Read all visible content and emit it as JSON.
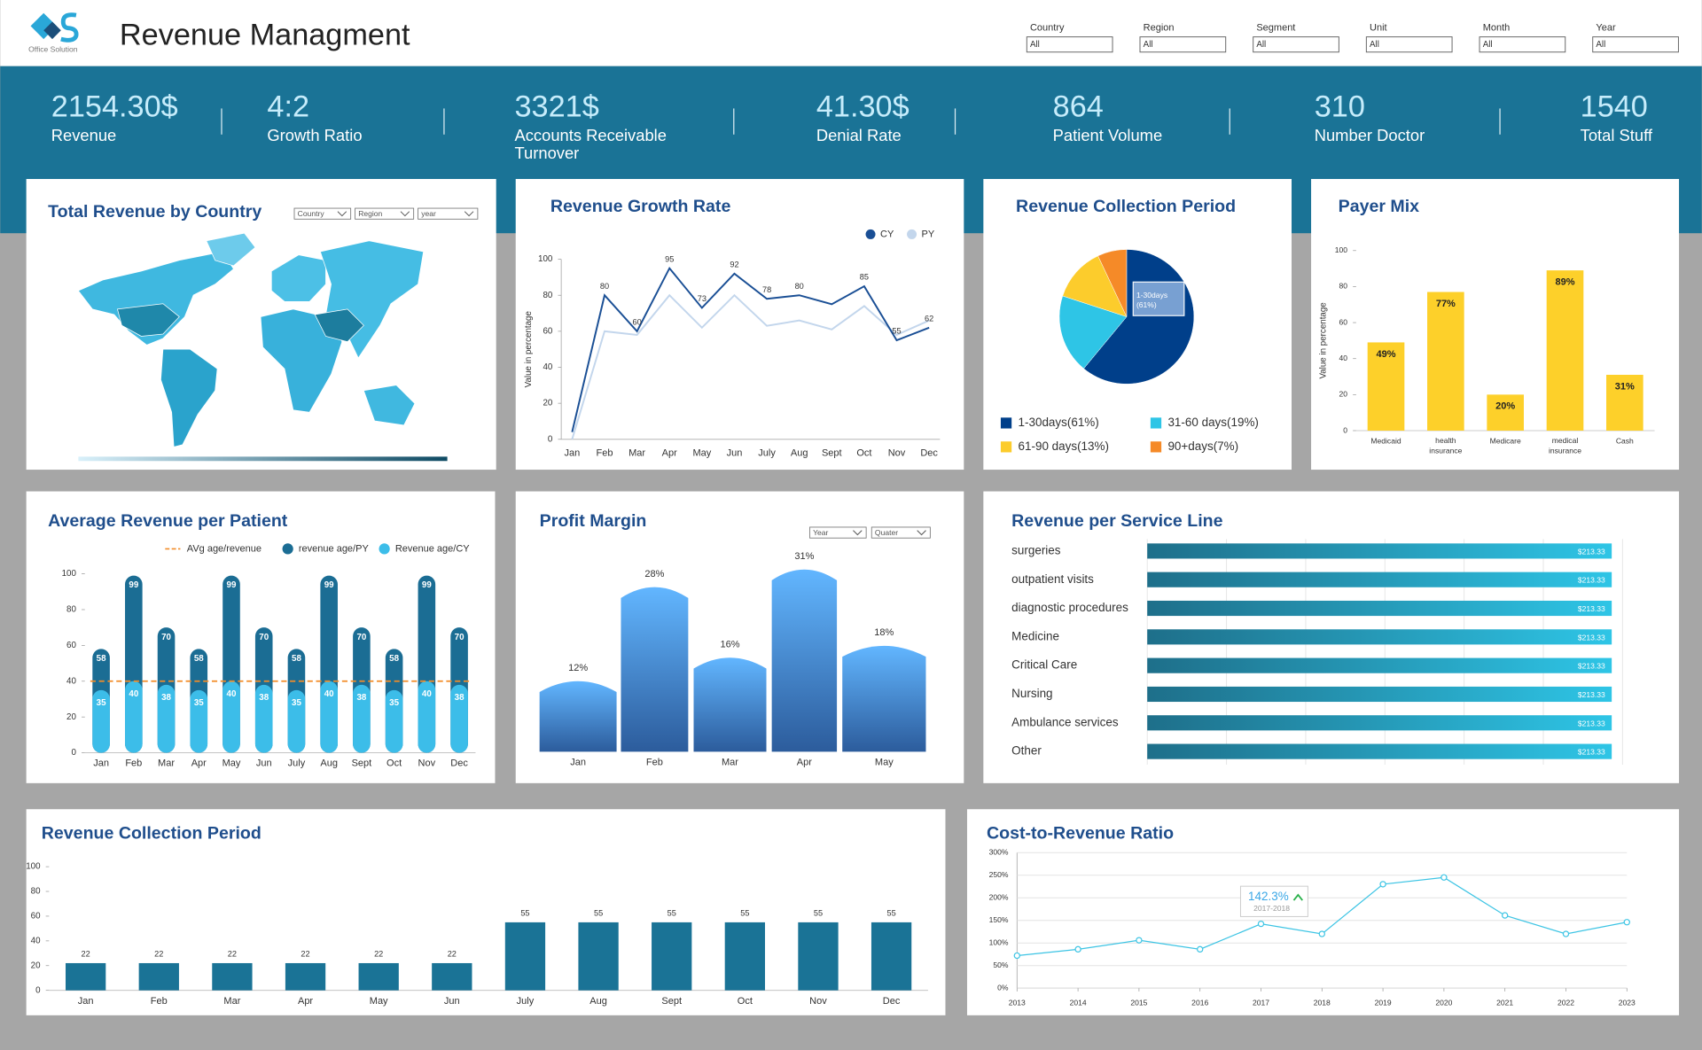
{
  "header": {
    "logo_text": "Office Solution",
    "title": "Revenue Managment"
  },
  "filters": [
    {
      "label": "Country",
      "value": "All"
    },
    {
      "label": "Region",
      "value": "All"
    },
    {
      "label": "Segment",
      "value": "All"
    },
    {
      "label": "Unit",
      "value": "All"
    },
    {
      "label": "Month",
      "value": "All"
    },
    {
      "label": "Year",
      "value": "All"
    }
  ],
  "kpis": [
    {
      "value": "2154.30$",
      "label": "Revenue"
    },
    {
      "value": "4:2",
      "label": "Growth Ratio"
    },
    {
      "value": "3321$",
      "label": "Accounts Receivable Turnover"
    },
    {
      "value": "41.30$",
      "label": "Denial Rate"
    },
    {
      "value": "864",
      "label": "Patient Volume"
    },
    {
      "value": "310",
      "label": "Number Doctor"
    },
    {
      "value": "1540",
      "label": "Total Stuff"
    }
  ],
  "chart_data": [
    {
      "type": "map",
      "title": "Total Revenue by Country",
      "filters": [
        "Country",
        "Region",
        "year"
      ]
    },
    {
      "type": "line",
      "title": "Revenue Growth Rate",
      "categories": [
        "Jan",
        "Feb",
        "Mar",
        "Apr",
        "May",
        "Jun",
        "July",
        "Aug",
        "Sept",
        "Oct",
        "Nov",
        "Dec"
      ],
      "series": [
        {
          "name": "CY",
          "color": "#1a4f95",
          "values": [
            4,
            80,
            60,
            95,
            73,
            92,
            78,
            80,
            75,
            85,
            55,
            62
          ],
          "value_labels": [
            null,
            "80",
            "60",
            "95",
            "73",
            "92",
            "78",
            "80",
            null,
            "85",
            "55",
            "62"
          ]
        },
        {
          "name": "PY",
          "color": "#c3d6ec",
          "values": [
            0,
            60,
            58,
            80,
            62,
            80,
            63,
            66,
            61,
            74,
            58,
            66
          ]
        }
      ],
      "ylabel": "Value in percentage",
      "ylim": [
        0,
        100
      ],
      "yticks": [
        0,
        20,
        40,
        60,
        80,
        100
      ],
      "grid": false
    },
    {
      "type": "pie",
      "title": "Revenue Collection Period",
      "categories": [
        "1-30days(61%)",
        "31-60 days(19%)",
        "61-90 days(13%)",
        "90+days(7%)"
      ],
      "values": [
        61,
        19,
        13,
        7
      ],
      "colors": [
        "#003f8a",
        "#2ec5e6",
        "#fccc2c",
        "#f58a28"
      ],
      "annotation": "1-30days (61%)"
    },
    {
      "type": "bar",
      "title": "Payer Mix",
      "categories": [
        "Medicaid",
        "health insurance",
        "Medicare",
        "medical insurance",
        "Cash"
      ],
      "values": [
        49,
        77,
        20,
        89,
        31
      ],
      "value_labels": [
        "49%",
        "77%",
        "20%",
        "89%",
        "31%"
      ],
      "color": "#fdd02a",
      "ylabel": "Value in percentage",
      "ylim": [
        0,
        100
      ],
      "yticks": [
        0,
        20,
        40,
        60,
        80,
        100
      ],
      "grid": false
    },
    {
      "type": "bar",
      "title": "Average Revenue per Patient",
      "categories": [
        "Jan",
        "Feb",
        "Mar",
        "Apr",
        "May",
        "Jun",
        "July",
        "Aug",
        "Sept",
        "Oct",
        "Nov",
        "Dec"
      ],
      "series": [
        {
          "name": "revenue age/PY",
          "color": "#1b6d94",
          "values": [
            58,
            99,
            70,
            58,
            99,
            70,
            58,
            99,
            70,
            58,
            99,
            70
          ]
        },
        {
          "name": "Revenue age/CY",
          "color": "#3cbde9",
          "values": [
            35,
            40,
            38,
            35,
            40,
            38,
            35,
            40,
            38,
            35,
            40,
            38
          ]
        }
      ],
      "avg_line": {
        "name": "AVg age/revenue",
        "value": 40,
        "color": "#f28c28"
      },
      "ylim": [
        0,
        100
      ],
      "yticks": [
        0,
        20,
        40,
        60,
        80,
        100
      ],
      "grid": false
    },
    {
      "type": "area",
      "title": "Profit Margin",
      "filters": [
        "Year",
        "Quater"
      ],
      "categories": [
        "Jan",
        "Feb",
        "Mar",
        "Apr",
        "May"
      ],
      "values": [
        12,
        28,
        16,
        31,
        18
      ],
      "value_labels": [
        "12%",
        "28%",
        "16%",
        "31%",
        "18%"
      ],
      "color": "#5aaef4"
    },
    {
      "type": "bar",
      "horizontal": true,
      "title": "Revenue per Service Line",
      "categories": [
        "surgeries",
        "outpatient visits",
        "diagnostic procedures",
        "Medicine",
        "Critical Care",
        "Nursing",
        "Ambulance services",
        "Other"
      ],
      "values": [
        213.33,
        213.33,
        213.33,
        213.33,
        213.33,
        213.33,
        213.33,
        213.33
      ],
      "value_labels": [
        "$213.33",
        "$213.33",
        "$213.33",
        "$213.33",
        "$213.33",
        "$213.33",
        "$213.33",
        "$213.33"
      ],
      "color": "#2ec5e6"
    },
    {
      "type": "bar",
      "title": "Revenue Collection Period",
      "categories": [
        "Jan",
        "Feb",
        "Mar",
        "Apr",
        "May",
        "Jun",
        "July",
        "Aug",
        "Sept",
        "Oct",
        "Nov",
        "Dec"
      ],
      "values": [
        22,
        22,
        22,
        22,
        22,
        22,
        55,
        55,
        55,
        55,
        55,
        55
      ],
      "color": "#1a7396",
      "ylim": [
        0,
        100
      ],
      "yticks": [
        0,
        20,
        40,
        60,
        80,
        100
      ],
      "grid": false
    },
    {
      "type": "line",
      "title": "Cost-to-Revenue Ratio",
      "x": [
        2013,
        2014,
        2015,
        2016,
        2017,
        2018,
        2019,
        2020,
        2021,
        2022,
        2023
      ],
      "xlim": [
        2013,
        2023
      ],
      "xticks": [
        2013,
        2014,
        2015,
        2016,
        2017,
        2018,
        2019,
        2020,
        2021,
        2022,
        2023
      ],
      "values": [
        72,
        86,
        106,
        86,
        142.3,
        120,
        230,
        245,
        161,
        120,
        146
      ],
      "color": "#3cc4e4",
      "ylim": [
        0,
        300
      ],
      "yticks": [
        {
          "value": 0,
          "label": "0%"
        },
        {
          "value": 50,
          "label": "50%"
        },
        {
          "value": 100,
          "label": "100%"
        },
        {
          "value": 150,
          "label": "150%"
        },
        {
          "value": 200,
          "label": "200%"
        },
        {
          "value": 250,
          "label": "250%"
        },
        {
          "value": 300,
          "label": "300%"
        }
      ],
      "grid": true,
      "annotation": {
        "value": "142.3%",
        "label": "2017-2018"
      }
    }
  ]
}
